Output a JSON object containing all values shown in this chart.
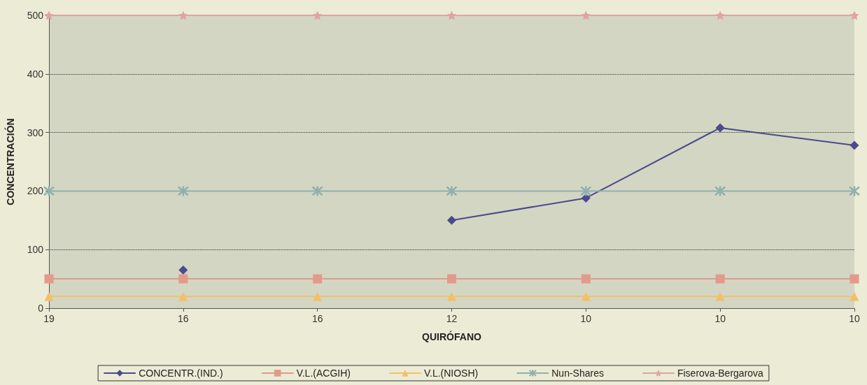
{
  "chart_data": {
    "type": "line",
    "xlabel": "QUIRÓFANO",
    "ylabel": "CONCENTRACIÓN",
    "categories": [
      "19",
      "16",
      "16",
      "12",
      "10",
      "10",
      "10"
    ],
    "series": [
      {
        "name": "CONCENTR.(IND.)",
        "color": "#4b4a8c",
        "marker": "diamond",
        "values": [
          null,
          65,
          null,
          150,
          188,
          308,
          278
        ]
      },
      {
        "name": "V.L.(ACGIH)",
        "color": "#e39a8a",
        "marker": "square",
        "values": [
          50,
          50,
          50,
          50,
          50,
          50,
          50
        ]
      },
      {
        "name": "V.L.(NIOSH)",
        "color": "#f2c069",
        "marker": "triangle",
        "values": [
          20,
          20,
          20,
          20,
          20,
          20,
          20
        ]
      },
      {
        "name": "Nun-Shares",
        "color": "#8fb0ac",
        "marker": "cross",
        "values": [
          200,
          200,
          200,
          200,
          200,
          200,
          200
        ]
      },
      {
        "name": "Fiserova-Bergarova",
        "color": "#e0a3a3",
        "marker": "star",
        "values": [
          500,
          500,
          500,
          500,
          500,
          500,
          500
        ]
      }
    ],
    "ylim": [
      0,
      500
    ],
    "yticks": [
      0,
      100,
      200,
      300,
      400,
      500
    ],
    "grid": "y",
    "legend": "bottom",
    "line_style": "solid"
  }
}
